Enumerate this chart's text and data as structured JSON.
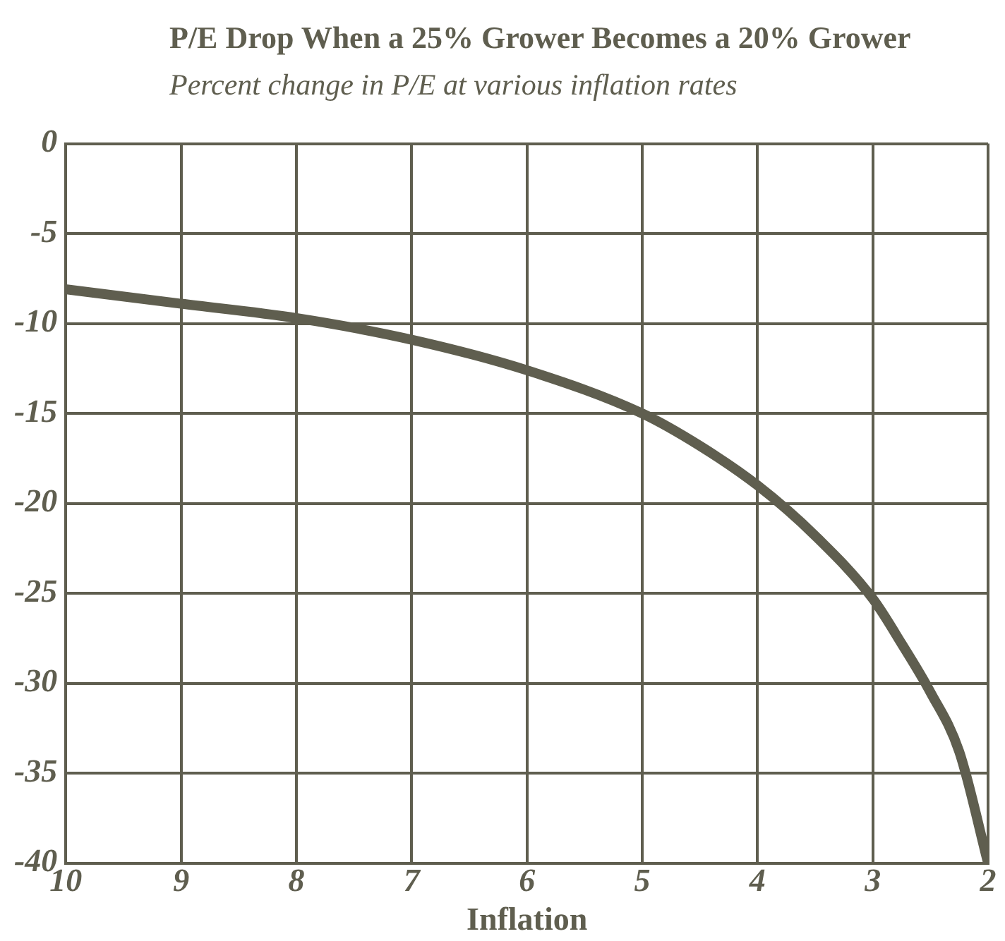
{
  "chart_data": {
    "type": "line",
    "title": "P/E Drop When a 25% Grower Becomes a 20% Grower",
    "subtitle": "Percent change in P/E at various inflation rates",
    "xlabel": "Inflation",
    "x": [
      10,
      9,
      8,
      7,
      6,
      5,
      4.5,
      4,
      3.5,
      3,
      2.75,
      2.5,
      2.25,
      2
    ],
    "series": [
      {
        "color": "#5f5e4f",
        "values": [
          -8.1,
          -8.9,
          -9.7,
          -10.9,
          -12.6,
          -15.0,
          -16.8,
          -19.0,
          -21.8,
          -25.3,
          -27.8,
          -30.5,
          -33.8,
          -40
        ]
      }
    ],
    "xlim": [
      10,
      2
    ],
    "xticks": [
      10,
      9,
      8,
      7,
      6,
      5,
      4,
      3,
      2
    ],
    "ylim": [
      -40,
      0
    ],
    "yticks": [
      0,
      -5,
      -10,
      -15,
      -20,
      -25,
      -30,
      -35,
      -40
    ],
    "grid": true,
    "marker": "none",
    "line_style": "solid",
    "legend": false
  }
}
